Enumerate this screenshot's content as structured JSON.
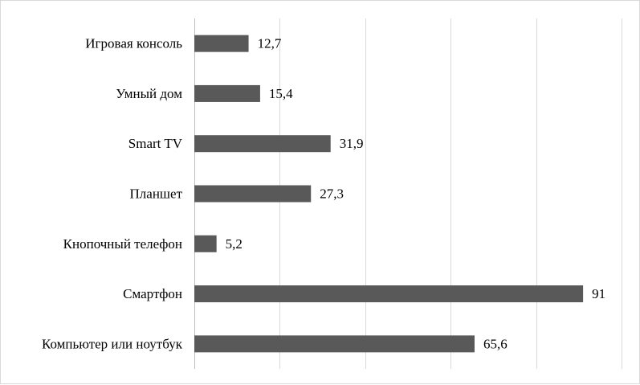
{
  "chart_data": {
    "type": "bar",
    "orientation": "horizontal",
    "title": "",
    "xlabel": "",
    "ylabel": "",
    "categories": [
      "Игровая консоль",
      "Умный дом",
      "Smart TV",
      "Планшет",
      "Кнопочный телефон",
      "Смартфон",
      "Компьютер или ноутбук"
    ],
    "values": [
      12.7,
      15.4,
      31.9,
      27.3,
      5.2,
      91,
      65.6
    ],
    "value_labels": [
      "12,7",
      "15,4",
      "31,9",
      "27,3",
      "5,2",
      "91",
      "65,6"
    ],
    "xlim": [
      0,
      100
    ],
    "grid": true,
    "legend": "none",
    "bar_color": "#595959",
    "grid_color": "#d9d9d9"
  }
}
